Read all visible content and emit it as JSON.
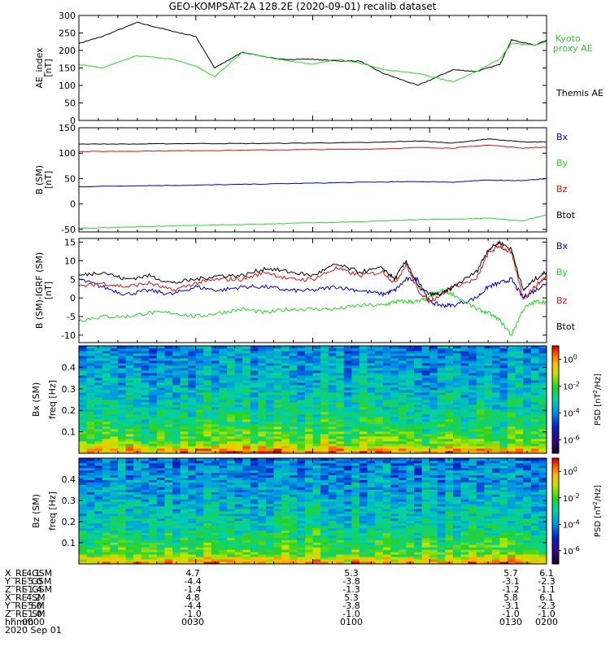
{
  "title": "GEO-KOMPSAT-2A 128.2E (2020-09-01) recalib dataset",
  "colors": {
    "black": "#000000",
    "green": "#22dd22",
    "red": "#dd1111",
    "blue": "#0000cc",
    "kyoto_label": "#33cc33"
  },
  "chart_data": [
    {
      "type": "line",
      "ylabel": "AE_index [nT]",
      "ylim": [
        0,
        300
      ],
      "yticks": [
        "0",
        "50",
        "100",
        "150",
        "200",
        "250",
        "300"
      ],
      "x_hours": [
        0.0,
        0.1,
        0.25,
        0.4,
        0.5,
        0.58,
        0.7,
        0.85,
        1.0,
        1.1,
        1.2,
        1.3,
        1.45,
        1.6,
        1.7,
        1.8,
        1.85,
        1.95,
        2.0
      ],
      "series": [
        {
          "name": "Themis AE",
          "color_key": "black",
          "values": [
            220,
            240,
            280,
            255,
            240,
            150,
            195,
            175,
            175,
            170,
            170,
            135,
            100,
            145,
            140,
            160,
            230,
            215,
            230
          ]
        },
        {
          "name": "Kyoto proxy AE",
          "color_key": "green",
          "values": [
            160,
            150,
            185,
            175,
            155,
            125,
            195,
            175,
            160,
            175,
            165,
            145,
            135,
            110,
            140,
            175,
            220,
            215,
            225
          ]
        }
      ],
      "legend": [
        "Kyoto proxy AE",
        "Themis AE"
      ]
    },
    {
      "type": "line",
      "ylabel": "B (SM) [nT]",
      "ylim": [
        -55,
        150
      ],
      "yticks": [
        "-50",
        "0",
        "50",
        "100",
        "150"
      ],
      "x_hours": [
        0.0,
        0.25,
        0.5,
        0.75,
        1.0,
        1.25,
        1.45,
        1.6,
        1.75,
        1.9,
        2.0
      ],
      "series": [
        {
          "name": "Bx",
          "color_key": "blue",
          "values": [
            34,
            36,
            37,
            39,
            41,
            43,
            44,
            43,
            47,
            46,
            50
          ]
        },
        {
          "name": "By",
          "color_key": "green",
          "values": [
            -48,
            -45,
            -42,
            -40,
            -37,
            -34,
            -31,
            -30,
            -28,
            -33,
            -21
          ]
        },
        {
          "name": "Bz",
          "color_key": "red",
          "values": [
            103,
            104,
            105,
            106,
            107,
            108,
            111,
            110,
            116,
            110,
            112
          ]
        },
        {
          "name": "Btot",
          "color_key": "black",
          "values": [
            118,
            118,
            119,
            119,
            120,
            121,
            124,
            120,
            128,
            122,
            122
          ]
        }
      ]
    },
    {
      "type": "line",
      "ylabel": "B (SM)-IGRF (SM) [nT]",
      "ylim": [
        -12,
        16
      ],
      "yticks": [
        "-10",
        "-5",
        "0",
        "5",
        "10",
        "15"
      ],
      "x_hours": [
        0.0,
        0.1,
        0.2,
        0.3,
        0.4,
        0.5,
        0.6,
        0.7,
        0.8,
        0.9,
        1.0,
        1.1,
        1.2,
        1.3,
        1.35,
        1.4,
        1.45,
        1.5,
        1.55,
        1.6,
        1.7,
        1.75,
        1.8,
        1.85,
        1.9,
        1.95,
        2.0
      ],
      "series": [
        {
          "name": "Bx",
          "color_key": "blue",
          "values": [
            5,
            3,
            1,
            2,
            1,
            3,
            2,
            3,
            3,
            2,
            2,
            3,
            2,
            1,
            2,
            5,
            5,
            -1,
            -2,
            -2,
            0,
            3,
            4,
            5,
            0,
            2,
            4
          ]
        },
        {
          "name": "By",
          "color_key": "green",
          "values": [
            -6,
            -5,
            -5,
            -4,
            -4,
            -5,
            -4,
            -3,
            -4,
            -3,
            -3,
            -3,
            -2,
            -2,
            -1,
            -1,
            -1,
            0,
            2,
            1,
            -3,
            -4,
            -6,
            -10,
            -3,
            -1,
            -1
          ]
        },
        {
          "name": "Bz",
          "color_key": "red",
          "values": [
            3,
            4,
            3,
            4,
            2,
            4,
            5,
            5,
            7,
            5,
            5,
            8,
            6,
            7,
            4,
            9,
            2,
            -1,
            1,
            3,
            5,
            12,
            14,
            12,
            0,
            3,
            6
          ]
        },
        {
          "name": "Btot",
          "color_key": "black",
          "values": [
            6,
            7,
            5,
            6,
            4,
            5,
            6,
            6,
            8,
            7,
            6,
            9,
            7,
            8,
            5,
            10,
            3,
            1,
            1,
            3,
            7,
            13,
            15,
            13,
            2,
            5,
            7
          ]
        }
      ]
    },
    {
      "type": "heatmap",
      "component_label": "Bx (SM)",
      "ylabel": "freq [Hz]",
      "ylim": [
        0,
        0.5
      ],
      "yticks": [
        "0.1",
        "0.2",
        "0.3",
        "0.4"
      ],
      "colorbar_label": "PSD [nT^2/Hz]",
      "colorbar_ticks": [
        "10^0",
        "10^-2",
        "10^-4",
        "10^-6"
      ],
      "colorbar_log_range": [
        -7,
        1
      ]
    },
    {
      "type": "heatmap",
      "component_label": "Bz (SM)",
      "ylabel": "freq [Hz]",
      "ylim": [
        0,
        0.5
      ],
      "yticks": [
        "0.1",
        "0.2",
        "0.3",
        "0.4"
      ],
      "colorbar_label": "PSD [nT^2/Hz]",
      "colorbar_ticks": [
        "10^0",
        "10^-2",
        "10^-4",
        "10^-6"
      ],
      "colorbar_log_range": [
        -7,
        1
      ]
    }
  ],
  "ephemeris": {
    "rows": [
      {
        "label": "X_RE_GSM",
        "values": [
          "4.1",
          "4.7",
          "5.3",
          "5.7",
          "6.1"
        ]
      },
      {
        "label": "Y_RE_GSM",
        "values": [
          "-5.0",
          "-4.4",
          "-3.8",
          "-3.1",
          "-2.3"
        ]
      },
      {
        "label": "Z_RE_GSM",
        "values": [
          "-1.4",
          "-1.4",
          "-1.3",
          "-1.2",
          "-1.1"
        ]
      },
      {
        "label": "X_RE_SM",
        "values": [
          "4.2",
          "4.8",
          "5.3",
          "5.8",
          "6.1"
        ]
      },
      {
        "label": "Y_RE_SM",
        "values": [
          "-5.0",
          "-4.4",
          "-3.8",
          "-3.1",
          "-2.3"
        ]
      },
      {
        "label": "Z_RE_SM",
        "values": [
          "-1.0",
          "-1.0",
          "-1.0",
          "-1.0",
          "-1.0"
        ]
      },
      {
        "label": "hhmm",
        "values": [
          "0000",
          "0030",
          "0100",
          "0130",
          "0200"
        ]
      }
    ],
    "date": "2020 Sep 01"
  }
}
